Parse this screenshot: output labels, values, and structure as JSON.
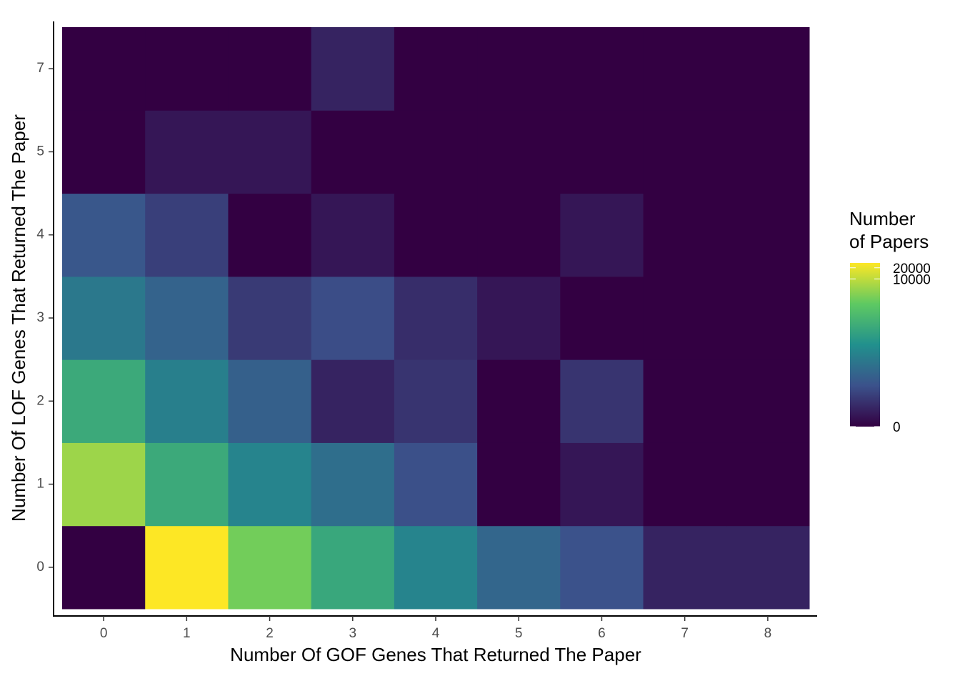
{
  "chart_data": {
    "type": "heatmap",
    "x_label": "Number Of GOF Genes That Returned The Paper",
    "y_label": "Number Of LOF Genes That Returned The Paper",
    "x_categories": [
      "0",
      "1",
      "2",
      "3",
      "4",
      "5",
      "6",
      "7",
      "8"
    ],
    "y_categories": [
      "0",
      "1",
      "2",
      "3",
      "4",
      "5",
      "7"
    ],
    "values": [
      [
        0,
        27000,
        2900,
        450,
        100,
        28,
        12,
        2,
        2
      ],
      [
        5800,
        500,
        100,
        40,
        11,
        0,
        1,
        0,
        0
      ],
      [
        500,
        80,
        22,
        2,
        4,
        0,
        4,
        0,
        0
      ],
      [
        60,
        25,
        5,
        10,
        3,
        1,
        0,
        0,
        0
      ],
      [
        15,
        6,
        0,
        1,
        0,
        0,
        1,
        0,
        0
      ],
      [
        0,
        1,
        1,
        0,
        0,
        0,
        0,
        0,
        0
      ],
      [
        0,
        0,
        0,
        2,
        0,
        0,
        0,
        0,
        0
      ]
    ],
    "colorbar": {
      "title": "Number\nof Papers",
      "scale": "log1p",
      "zlim": [
        0,
        27000
      ],
      "ticks": [
        0,
        10000,
        20000
      ],
      "colormap": [
        "#330042",
        "#3b528b",
        "#21908d",
        "#5ec962",
        "#fde725"
      ]
    }
  }
}
